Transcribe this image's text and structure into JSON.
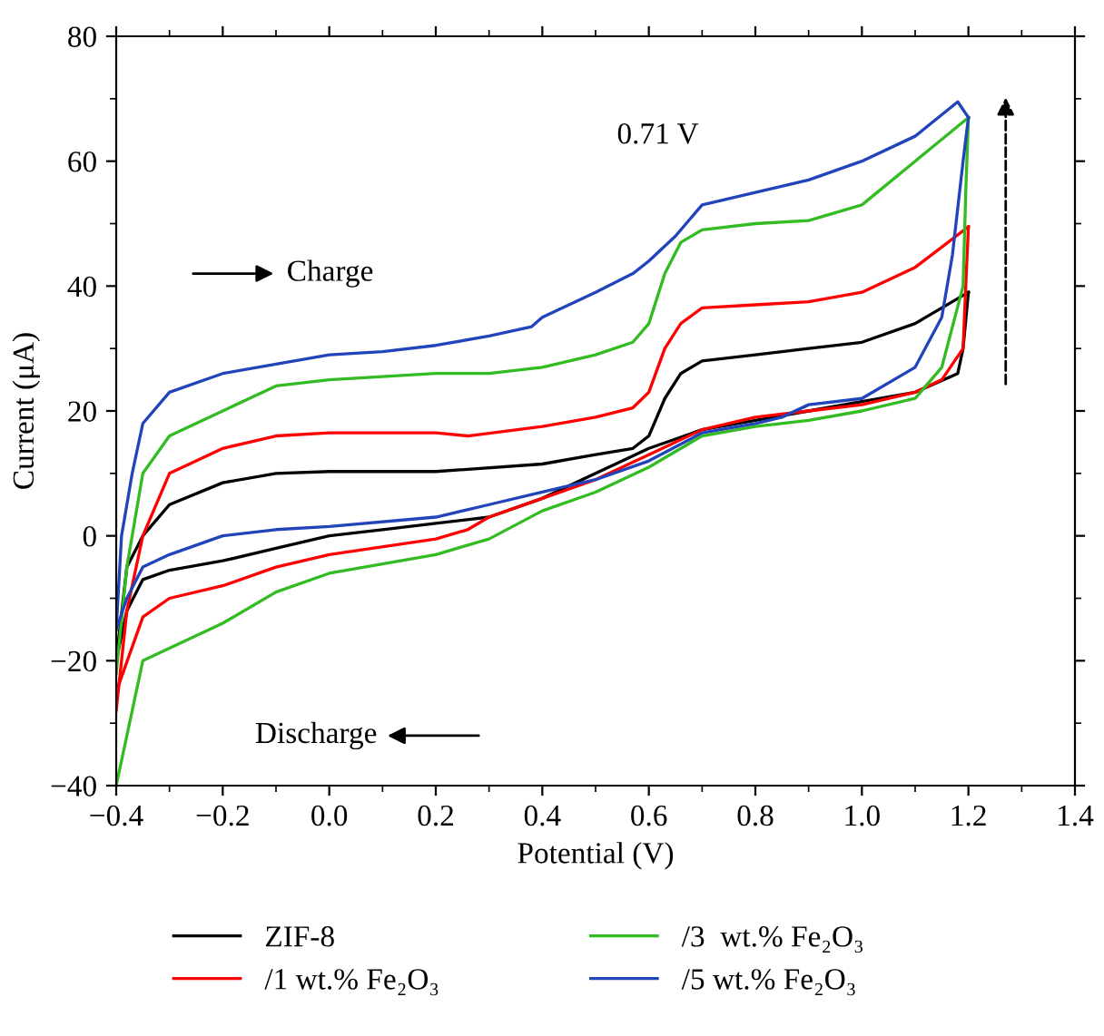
{
  "chart_data": {
    "type": "line",
    "xlabel": "Potential (V)",
    "ylabel": "Current (μA)",
    "xlim": [
      -0.4,
      1.4
    ],
    "ylim": [
      -40,
      80
    ],
    "xticks": [
      {
        "value": -0.4,
        "label": "−0.4"
      },
      {
        "value": -0.2,
        "label": "−0.2"
      },
      {
        "value": 0,
        "label": "0.0"
      },
      {
        "value": 0.2,
        "label": "0.2"
      },
      {
        "value": 0.4,
        "label": "0.4"
      },
      {
        "value": 0.6,
        "label": "0.6"
      },
      {
        "value": 0.8,
        "label": "0.8"
      },
      {
        "value": 1.0,
        "label": "1.0"
      },
      {
        "value": 1.2,
        "label": "1.2"
      },
      {
        "value": 1.4,
        "label": "1.4"
      }
    ],
    "yticks": [
      {
        "value": -40,
        "label": "−40"
      },
      {
        "value": -20,
        "label": "−20"
      },
      0,
      20,
      40,
      60,
      80
    ],
    "grid": false,
    "legend": "bottom",
    "marker": "none",
    "line_style": "solid",
    "annotations": [
      "0.71 V",
      "Charge",
      "Discharge"
    ],
    "series": [
      {
        "name": "ZIF-8",
        "color": "#000000",
        "x": [
          -0.4,
          -0.38,
          -0.35,
          -0.3,
          -0.2,
          -0.1,
          0,
          0.2,
          0.4,
          0.5,
          0.57,
          0.6,
          0.63,
          0.66,
          0.7,
          0.8,
          0.9,
          1.0,
          1.1,
          1.2
        ],
        "values": [
          -20,
          -5,
          0,
          5,
          8.5,
          10,
          10.3,
          10.3,
          11.5,
          13,
          14,
          16,
          22,
          26,
          28,
          29,
          30,
          31,
          34,
          39
        ]
      },
      {
        "color": "#000000",
        "x": [
          1.2,
          1.19,
          1.18,
          1.1,
          1.0,
          0.9,
          0.8,
          0.7,
          0.6,
          0.5,
          0.4,
          0.3,
          0.2,
          0.1,
          0,
          -0.1,
          -0.2,
          -0.3,
          -0.35,
          -0.38,
          -0.4
        ],
        "values": [
          39,
          30,
          26,
          23,
          21.5,
          20,
          18.5,
          17,
          14,
          10,
          6,
          3,
          2,
          1,
          0,
          -2,
          -4,
          -5.5,
          -7,
          -12,
          -20
        ]
      },
      {
        "name": "/1 wt.% Fe₂O₃",
        "color": "#ff0000",
        "x": [
          -0.4,
          -0.38,
          -0.35,
          -0.3,
          -0.2,
          -0.1,
          0,
          0.2,
          0.26,
          0.4,
          0.5,
          0.57,
          0.6,
          0.63,
          0.66,
          0.7,
          0.8,
          0.9,
          1.0,
          1.1,
          1.2
        ],
        "values": [
          -28,
          -12,
          0,
          10,
          14,
          16,
          16.5,
          16.5,
          16,
          17.5,
          19,
          20.5,
          23,
          30,
          34,
          36.5,
          37,
          37.5,
          39,
          43,
          49.5
        ]
      },
      {
        "color": "#ff0000",
        "x": [
          1.2,
          1.195,
          1.19,
          1.15,
          1.1,
          1.0,
          0.9,
          0.8,
          0.7,
          0.6,
          0.5,
          0.4,
          0.3,
          0.26,
          0.2,
          0,
          -0.1,
          -0.2,
          -0.3,
          -0.35,
          -0.4
        ],
        "values": [
          49.5,
          40,
          30,
          25,
          23,
          21,
          20,
          19,
          17,
          13,
          9,
          6,
          3,
          1,
          -0.5,
          -3,
          -5,
          -8,
          -10,
          -13,
          -25
        ]
      },
      {
        "name": "/3  wt.% Fe₂O₃",
        "color": "#33bb22",
        "x": [
          -0.4,
          -0.38,
          -0.35,
          -0.3,
          -0.2,
          -0.1,
          0,
          0.1,
          0.2,
          0.3,
          0.4,
          0.5,
          0.57,
          0.6,
          0.63,
          0.66,
          0.7,
          0.8,
          0.9,
          1.0,
          1.1,
          1.2
        ],
        "values": [
          -22,
          -5,
          10,
          16,
          20,
          24,
          25,
          25.5,
          26,
          26,
          27,
          29,
          31,
          34,
          42,
          47,
          49,
          50,
          50.5,
          53,
          60,
          67
        ]
      },
      {
        "color": "#33bb22",
        "x": [
          1.2,
          1.195,
          1.19,
          1.15,
          1.1,
          1.0,
          0.9,
          0.8,
          0.7,
          0.6,
          0.5,
          0.4,
          0.3,
          0.2,
          0,
          -0.1,
          -0.2,
          -0.3,
          -0.35,
          -0.4
        ],
        "values": [
          67,
          55,
          40,
          27,
          22,
          20,
          18.5,
          17.5,
          16,
          11,
          7,
          4,
          -0.5,
          -3,
          -6,
          -9,
          -14,
          -18,
          -20,
          -40
        ]
      },
      {
        "name": "/5 wt.% Fe₂O₃",
        "color": "#2244bb",
        "x": [
          -0.4,
          -0.39,
          -0.37,
          -0.35,
          -0.3,
          -0.2,
          -0.1,
          0,
          0.1,
          0.2,
          0.3,
          0.38,
          0.4,
          0.5,
          0.57,
          0.6,
          0.65,
          0.7,
          0.8,
          0.9,
          1.0,
          1.1,
          1.18,
          1.2
        ],
        "values": [
          -15,
          0,
          10,
          18,
          23,
          26,
          27.5,
          29,
          29.5,
          30.5,
          32,
          33.5,
          35,
          39,
          42,
          44,
          48,
          53,
          55,
          57,
          60,
          64,
          69.5,
          67
        ]
      },
      {
        "color": "#2244bb",
        "x": [
          1.2,
          1.19,
          1.17,
          1.15,
          1.1,
          1.0,
          0.9,
          0.85,
          0.8,
          0.7,
          0.6,
          0.5,
          0.4,
          0.3,
          0.2,
          0,
          -0.1,
          -0.2,
          -0.3,
          -0.35,
          -0.38,
          -0.4
        ],
        "values": [
          67,
          60,
          45,
          35,
          27,
          22,
          21,
          19,
          18,
          16.5,
          12,
          9,
          7,
          5,
          3,
          1.5,
          1,
          0,
          -3,
          -5,
          -10,
          -15
        ]
      }
    ]
  }
}
